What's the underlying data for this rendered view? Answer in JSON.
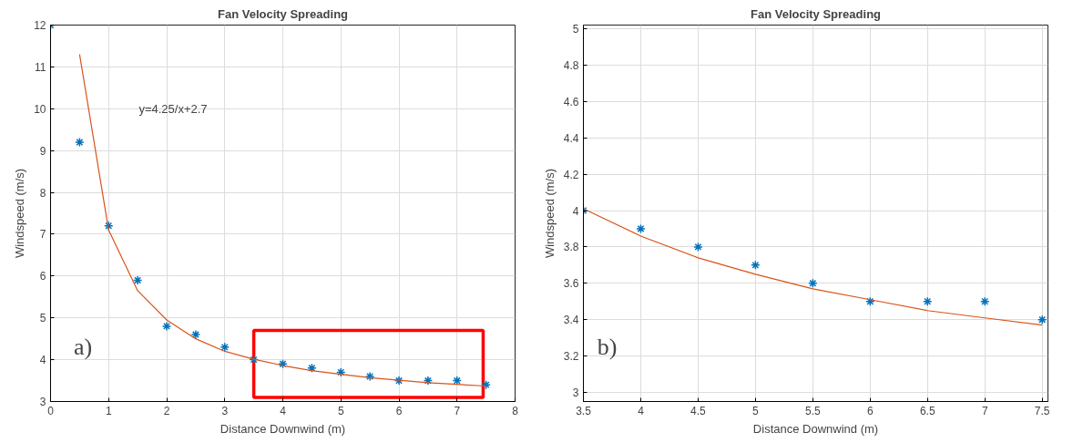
{
  "chart_data": [
    {
      "type": "scatter",
      "title": "Fan Velocity Spreading",
      "xlabel": "Distance Downwind (m)",
      "ylabel": "Windspeed (m/s)",
      "x": [
        0,
        0.5,
        1,
        1.5,
        2,
        2.5,
        3,
        3.5,
        4,
        4.5,
        5,
        5.5,
        6,
        6.5,
        7,
        7.5
      ],
      "series": [
        {
          "color": "#0072bd",
          "marker": "cross",
          "values": [
            12,
            9.2,
            7.2,
            5.9,
            4.8,
            4.6,
            4.3,
            4.0,
            3.9,
            3.8,
            3.7,
            3.6,
            3.5,
            3.5,
            3.5,
            3.4
          ]
        },
        {
          "type": "line",
          "color": "#d95319",
          "marker": "none",
          "line_style": "solid",
          "x": [
            0.5,
            1,
            1.5,
            2,
            2.5,
            3,
            3.5,
            4,
            4.5,
            5,
            5.5,
            6,
            6.5,
            7,
            7.5
          ],
          "values": [
            11.3,
            7.1,
            5.65,
            4.95,
            4.5,
            4.2,
            4.01,
            3.86,
            3.74,
            3.65,
            3.57,
            3.51,
            3.45,
            3.41,
            3.37
          ]
        }
      ],
      "xlim": [
        0,
        8
      ],
      "ylim": [
        3,
        12
      ],
      "xticks": [
        0,
        1,
        2,
        3,
        4,
        5,
        6,
        7,
        8
      ],
      "yticks": [
        3,
        4,
        5,
        6,
        7,
        8,
        9,
        10,
        11,
        12
      ],
      "grid": true,
      "annotations": [
        "y=4.25/x+2.7",
        "a)"
      ]
    },
    {
      "type": "scatter",
      "title": "Fan Velocity Spreading",
      "xlabel": "Distance Downwind (m)",
      "ylabel": "Windspeed (m/s)",
      "x": [
        3.5,
        4,
        4.5,
        5,
        5.5,
        6,
        6.5,
        7,
        7.5
      ],
      "series": [
        {
          "color": "#0072bd",
          "marker": "cross",
          "values": [
            4.0,
            3.9,
            3.8,
            3.7,
            3.6,
            3.5,
            3.5,
            3.5,
            3.4
          ]
        },
        {
          "type": "line",
          "color": "#d95319",
          "marker": "none",
          "line_style": "solid",
          "x": [
            3.5,
            4,
            4.5,
            5,
            5.5,
            6,
            6.5,
            7,
            7.5
          ],
          "values": [
            4.01,
            3.86,
            3.74,
            3.65,
            3.57,
            3.51,
            3.45,
            3.41,
            3.37
          ]
        }
      ],
      "xlim": [
        3.5,
        7.55
      ],
      "ylim": [
        2.95,
        5.02
      ],
      "xticks": [
        3.5,
        4,
        4.5,
        5,
        5.5,
        6,
        6.5,
        7,
        7.5
      ],
      "yticks": [
        3,
        3.2,
        3.4,
        3.6,
        3.8,
        4,
        4.2,
        4.4,
        4.6,
        4.8,
        5
      ],
      "grid": true,
      "annotations": [
        "b)"
      ]
    }
  ]
}
